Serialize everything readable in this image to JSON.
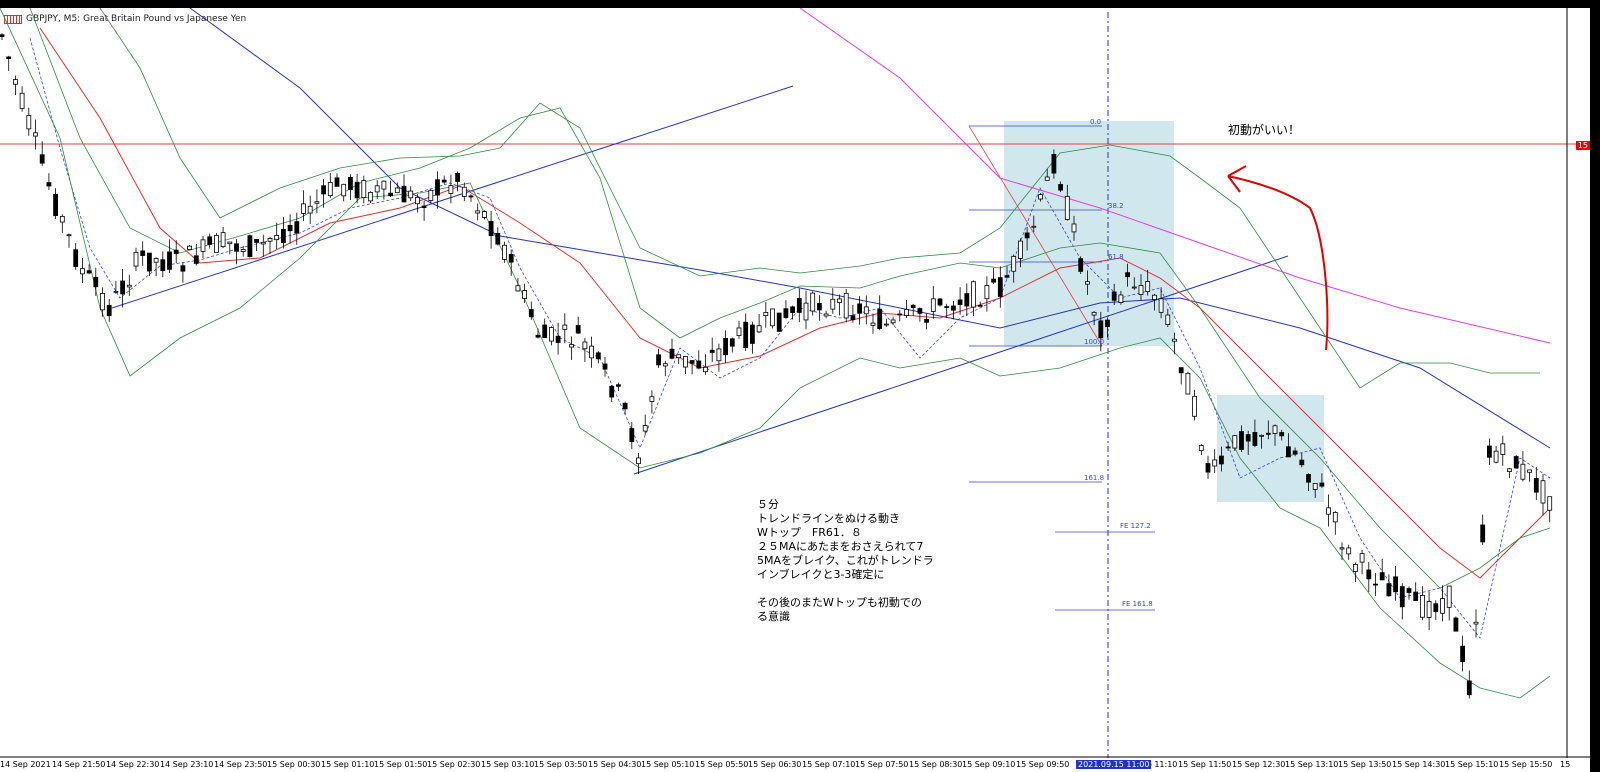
{
  "window": {
    "title": "GBPJPY, M5:  Great Britain Pound vs Japanese Yen",
    "chart_icon": "chart-type-icon"
  },
  "annotations": {
    "note_main": "５分\nトレンドラインをぬける動き\nWトップ　FR61．８\n２５MAにあたまをおさえられて7\n5MAをブレイク、これがトレンドラ\nインブレイクと3-3確定に\n\nその後のまたWトップも初動での\nる意識",
    "note_top": "初動がいい！"
  },
  "fibo": {
    "levels": [
      "0.0",
      "38.2",
      "61.8",
      "100.0",
      "161.8"
    ],
    "expansion": [
      "FE 127.2",
      "FE 161.8"
    ]
  },
  "price_tag": "15",
  "crosshair_time": "2021.09.15 11:00",
  "time_axis": [
    "14 Sep 2021",
    "14 Sep 21:50",
    "14 Sep 22:30",
    "14 Sep 23:10",
    "14 Sep 23:50",
    "15 Sep 00:30",
    "15 Sep 01:10",
    "15 Sep 01:50",
    "15 Sep 02:30",
    "15 Sep 03:10",
    "15 Sep 03:50",
    "15 Sep 04:30",
    "15 Sep 05:10",
    "15 Sep 05:50",
    "15 Sep 06:30",
    "15 Sep 07:10",
    "15 Sep 07:50",
    "15 Sep 08:30",
    "15 Sep 09:10",
    "15 Sep 09:50",
    "15 Sep 11:10",
    "15 Sep 11:50",
    "15 Sep 12:30",
    "15 Sep 13:10",
    "15 Sep 13:50",
    "15 Sep 14:30",
    "15 Sep 15:10",
    "15 Sep 15:50",
    "15"
  ],
  "colors": {
    "bollinger": "#2e8b3e",
    "ma_short": "#e03030",
    "ma_long": "#2233cc",
    "ma_xlong": "#e040e0",
    "highlight_box": "#a9d4e0",
    "hand_drawn": "#e00000"
  }
}
